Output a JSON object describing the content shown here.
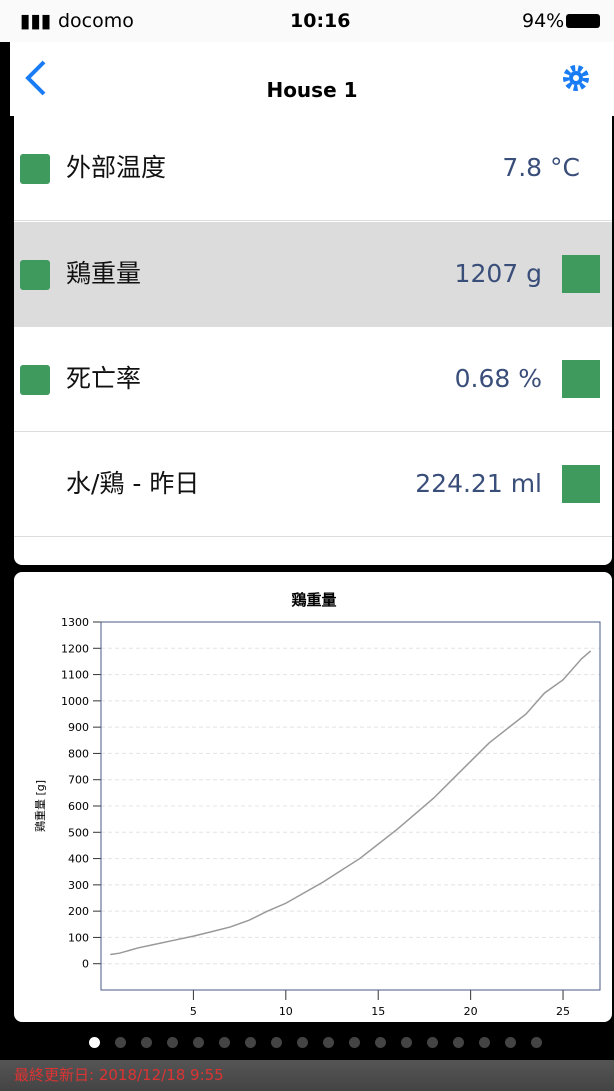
{
  "status_bar": {
    "carrier": "docomo",
    "time": "10:16",
    "battery": "94%"
  },
  "nav": {
    "title": "House 1"
  },
  "rows": [
    {
      "label": "外部温度",
      "value": "7.8 °C"
    },
    {
      "label": "鶏重量",
      "value": "1207 g"
    },
    {
      "label": "死亡率",
      "value": "0.68 %"
    },
    {
      "label": "水/鶏 - 昨日",
      "value": "224.21 ml"
    }
  ],
  "chart_data": {
    "type": "line",
    "title": "鶏重量",
    "y_label": "鶏重量 [g]",
    "x": [
      0.5,
      1,
      2,
      3,
      4,
      5,
      6,
      7,
      8,
      9,
      10,
      11,
      12,
      13,
      14,
      15,
      16,
      17,
      18,
      19,
      20,
      21,
      22,
      23,
      24,
      25,
      26,
      26.5
    ],
    "values": [
      35,
      40,
      60,
      75,
      90,
      105,
      122,
      140,
      165,
      200,
      230,
      270,
      310,
      355,
      400,
      455,
      510,
      570,
      630,
      700,
      770,
      840,
      895,
      950,
      1030,
      1080,
      1160,
      1190
    ],
    "color": "#999999",
    "xlim": [
      0,
      27
    ],
    "xticks": [
      5,
      10,
      15,
      20,
      25
    ],
    "ylim": [
      -100,
      1300
    ],
    "yticks": [
      0,
      100,
      200,
      300,
      400,
      500,
      600,
      700,
      800,
      900,
      1000,
      1100,
      1200,
      1300
    ],
    "grid": true
  },
  "footer": {
    "text": "最終更新日: 2018/12/18 9:55"
  }
}
